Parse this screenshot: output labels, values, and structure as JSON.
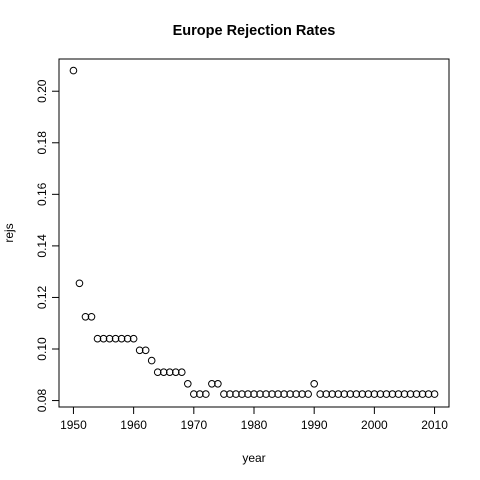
{
  "chart_data": {
    "type": "scatter",
    "title": "Europe Rejection Rates",
    "xlabel": "year",
    "ylabel": "rejs",
    "xlim": [
      1947.6,
      2012.4
    ],
    "ylim": [
      0.0775,
      0.2125
    ],
    "x_ticks": [
      1950,
      1960,
      1970,
      1980,
      1990,
      2000,
      2010
    ],
    "x_tick_labels": [
      "1950",
      "1960",
      "1970",
      "1980",
      "1990",
      "2000",
      "2010"
    ],
    "y_ticks": [
      0.08,
      0.1,
      0.12,
      0.14,
      0.16,
      0.18,
      0.2
    ],
    "y_tick_labels": [
      "0.08",
      "0.10",
      "0.12",
      "0.14",
      "0.16",
      "0.18",
      "0.20"
    ],
    "grid": false,
    "legend": "none",
    "marker": "open-circle",
    "series": [
      {
        "x": [
          1950,
          1951,
          1952,
          1953,
          1954,
          1955,
          1956,
          1957,
          1958,
          1959,
          1960,
          1961,
          1962,
          1963,
          1964,
          1965,
          1966,
          1967,
          1968,
          1969,
          1970,
          1971,
          1972,
          1973,
          1974,
          1975,
          1976,
          1977,
          1978,
          1979,
          1980,
          1981,
          1982,
          1983,
          1984,
          1985,
          1986,
          1987,
          1988,
          1989,
          1990,
          1991,
          1992,
          1993,
          1994,
          1995,
          1996,
          1997,
          1998,
          1999,
          2000,
          2001,
          2002,
          2003,
          2004,
          2005,
          2006,
          2007,
          2008,
          2009,
          2010
        ],
        "y": [
          0.208,
          0.1255,
          0.1125,
          0.1125,
          0.104,
          0.104,
          0.104,
          0.104,
          0.104,
          0.104,
          0.104,
          0.0995,
          0.0995,
          0.0955,
          0.091,
          0.091,
          0.091,
          0.091,
          0.091,
          0.0865,
          0.0825,
          0.0825,
          0.0825,
          0.0865,
          0.0865,
          0.0825,
          0.0825,
          0.0825,
          0.0825,
          0.0825,
          0.0825,
          0.0825,
          0.0825,
          0.0825,
          0.0825,
          0.0825,
          0.0825,
          0.0825,
          0.0825,
          0.0825,
          0.0865,
          0.0825,
          0.0825,
          0.0825,
          0.0825,
          0.0825,
          0.0825,
          0.0825,
          0.0825,
          0.0825,
          0.0825,
          0.0825,
          0.0825,
          0.0825,
          0.0825,
          0.0825,
          0.0825,
          0.0825,
          0.0825,
          0.0825,
          0.0825
        ]
      }
    ]
  }
}
